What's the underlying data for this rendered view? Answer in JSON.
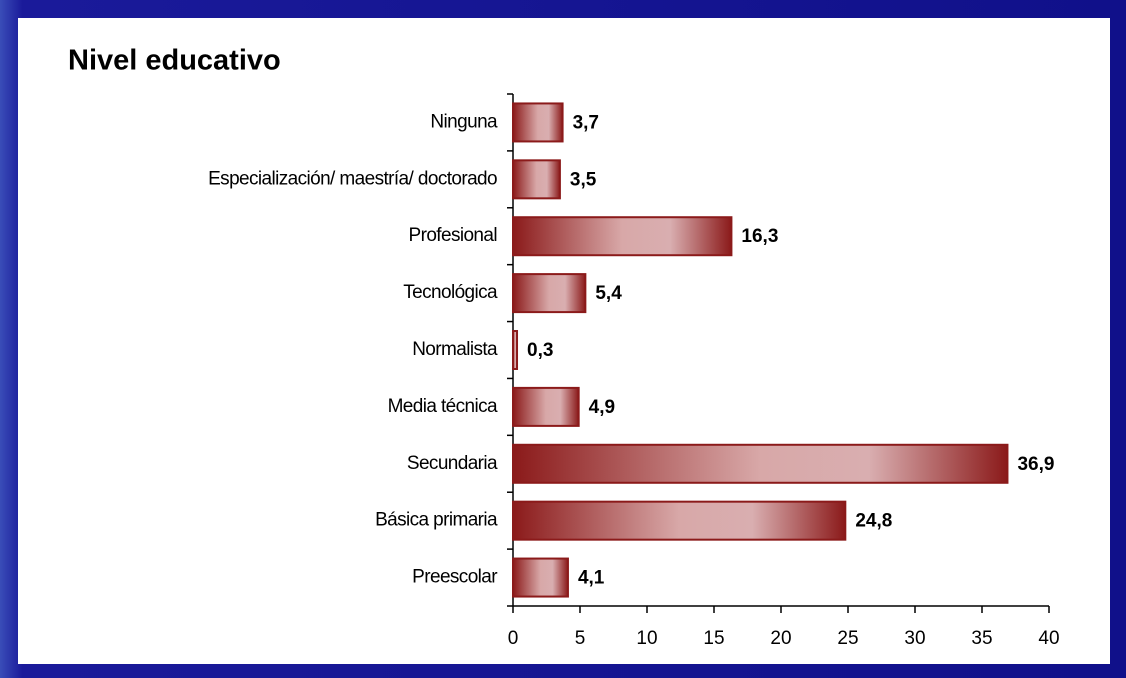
{
  "chart_data": {
    "type": "bar",
    "orientation": "horizontal",
    "title": "Nivel educativo",
    "categories": [
      "Ninguna",
      "Especialización/ maestría/ doctorado",
      "Profesional",
      "Tecnológica",
      "Normalista",
      "Media técnica",
      "Secundaria",
      "Básica primaria",
      "Preescolar"
    ],
    "values": [
      3.7,
      3.5,
      16.3,
      5.4,
      0.3,
      4.9,
      36.9,
      24.8,
      4.1
    ],
    "value_labels": [
      "3,7",
      "3,5",
      "16,3",
      "5,4",
      "0,3",
      "4,9",
      "36,9",
      "24,8",
      "4,1"
    ],
    "color": "#8b1a1a",
    "xlim": [
      0,
      40
    ],
    "xticks": [
      0,
      5,
      10,
      15,
      20,
      25,
      30,
      35,
      40
    ],
    "grid": false
  }
}
